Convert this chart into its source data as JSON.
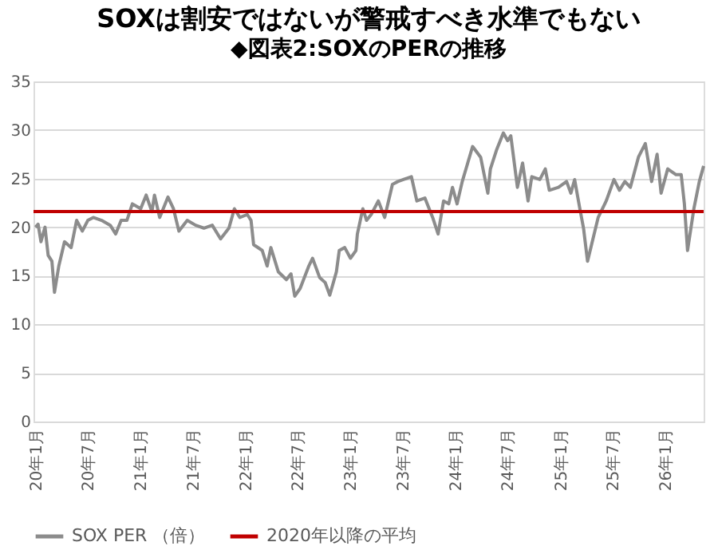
{
  "chart_data": {
    "type": "line",
    "title": "SOXは割安ではないが警戒すべき水準でもない",
    "subtitle": "◆図表2:SOXのPERの推移",
    "x": [
      "2020-01-01",
      "2020-01-10",
      "2020-01-20",
      "2020-02-03",
      "2020-02-14",
      "2020-02-27",
      "2020-03-07",
      "2020-03-22",
      "2020-04-11",
      "2020-05-04",
      "2020-05-23",
      "2020-06-12",
      "2020-07-01",
      "2020-07-20",
      "2020-08-18",
      "2020-09-17",
      "2020-10-06",
      "2020-10-25",
      "2020-11-14",
      "2020-12-03",
      "2021-01-01",
      "2021-01-20",
      "2021-02-09",
      "2021-02-18",
      "2021-03-08",
      "2021-04-06",
      "2021-04-25",
      "2021-05-14",
      "2021-06-12",
      "2021-07-11",
      "2021-08-09",
      "2021-09-07",
      "2021-10-06",
      "2021-11-04",
      "2021-11-23",
      "2021-12-12",
      "2022-01-07",
      "2022-01-20",
      "2022-01-29",
      "2022-02-28",
      "2022-03-17",
      "2022-03-30",
      "2022-04-25",
      "2022-05-23",
      "2022-06-08",
      "2022-06-21",
      "2022-07-10",
      "2022-08-09",
      "2022-08-22",
      "2022-09-16",
      "2022-10-05",
      "2022-10-21",
      "2022-11-13",
      "2022-11-23",
      "2022-12-12",
      "2023-01-01",
      "2023-01-20",
      "2023-01-25",
      "2023-02-13",
      "2023-02-26",
      "2023-03-14",
      "2023-04-08",
      "2023-04-30",
      "2023-05-27",
      "2023-06-15",
      "2023-07-04",
      "2023-08-01",
      "2023-08-20",
      "2023-09-17",
      "2023-10-14",
      "2023-11-02",
      "2023-11-21",
      "2023-12-09",
      "2023-12-22",
      "2024-01-07",
      "2024-01-25",
      "2024-02-13",
      "2024-03-01",
      "2024-03-29",
      "2024-04-23",
      "2024-05-02",
      "2024-05-24",
      "2024-06-16",
      "2024-07-01",
      "2024-07-12",
      "2024-08-04",
      "2024-08-22",
      "2024-09-10",
      "2024-09-23",
      "2024-10-21",
      "2024-11-09",
      "2024-11-23",
      "2024-12-25",
      "2025-01-22",
      "2025-02-06",
      "2025-02-19",
      "2025-03-08",
      "2025-03-22",
      "2025-04-05",
      "2025-04-19",
      "2025-05-12",
      "2025-06-09",
      "2025-07-06",
      "2025-07-25",
      "2025-08-13",
      "2025-09-01",
      "2025-09-29",
      "2025-10-23",
      "2025-11-14",
      "2025-12-03",
      "2025-12-17",
      "2026-01-09",
      "2026-02-07",
      "2026-02-25",
      "2026-03-08",
      "2026-03-19",
      "2026-04-10",
      "2026-04-29",
      "2026-05-14"
    ],
    "series": [
      {
        "name": "SOX PER （倍）",
        "color": "#8c8c8c",
        "values": [
          20.0,
          20.3,
          18.5,
          20.0,
          17.1,
          16.5,
          13.3,
          16.0,
          18.5,
          17.9,
          20.7,
          19.6,
          20.7,
          21.0,
          20.7,
          20.2,
          19.3,
          20.7,
          20.7,
          22.4,
          21.9,
          23.3,
          21.6,
          23.3,
          21.0,
          23.1,
          21.9,
          19.6,
          20.7,
          20.2,
          19.9,
          20.2,
          18.8,
          19.9,
          21.9,
          21.0,
          21.3,
          20.7,
          18.2,
          17.6,
          16.0,
          17.9,
          15.4,
          14.6,
          15.2,
          12.9,
          13.7,
          16.0,
          16.8,
          14.8,
          14.3,
          13.0,
          15.4,
          17.6,
          17.9,
          16.8,
          17.6,
          19.3,
          21.9,
          20.7,
          21.3,
          22.7,
          21.0,
          24.4,
          24.7,
          24.9,
          25.2,
          22.7,
          23.0,
          21.0,
          19.3,
          22.7,
          22.4,
          24.1,
          22.4,
          24.7,
          26.6,
          28.3,
          27.2,
          23.5,
          26.0,
          28.0,
          29.7,
          28.9,
          29.4,
          24.1,
          26.6,
          22.7,
          25.2,
          24.9,
          26.0,
          23.8,
          24.1,
          24.7,
          23.5,
          24.9,
          22.1,
          19.9,
          16.5,
          18.2,
          21.0,
          22.7,
          24.9,
          23.8,
          24.7,
          24.1,
          27.2,
          28.6,
          24.7,
          27.5,
          23.5,
          26.0,
          25.4,
          25.4,
          22.4,
          17.6,
          21.9,
          24.7,
          26.3
        ]
      }
    ],
    "ref_lines": [
      {
        "axis": "y",
        "value": 21.6,
        "label": "2020年以降の平均",
        "color": "#c00000"
      }
    ],
    "xlim": [
      "2019-12-25",
      "2026-05-14"
    ],
    "xticks": [
      {
        "value": "2020-01",
        "label": "20年1月"
      },
      {
        "value": "2020-07",
        "label": "20年7月"
      },
      {
        "value": "2021-01",
        "label": "21年1月"
      },
      {
        "value": "2021-07",
        "label": "21年7月"
      },
      {
        "value": "2022-01",
        "label": "22年1月"
      },
      {
        "value": "2022-07",
        "label": "22年7月"
      },
      {
        "value": "2023-01",
        "label": "23年1月"
      },
      {
        "value": "2023-07",
        "label": "23年7月"
      },
      {
        "value": "2024-01",
        "label": "24年1月"
      },
      {
        "value": "2024-07",
        "label": "24年7月"
      },
      {
        "value": "2025-01",
        "label": "25年1月"
      },
      {
        "value": "2025-07",
        "label": "25年7月"
      },
      {
        "value": "2026-01",
        "label": "26年1月"
      }
    ],
    "ylim": [
      0,
      35
    ],
    "yticks": [
      0,
      5,
      10,
      15,
      20,
      25,
      30,
      35
    ],
    "grid": "y",
    "legend": "bottom",
    "marker": "none",
    "line_style": "solid"
  }
}
